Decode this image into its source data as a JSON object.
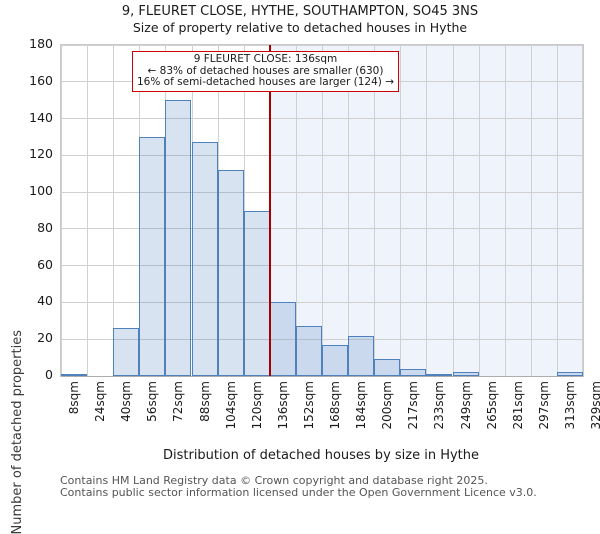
{
  "title": "9, FLEURET CLOSE, HYTHE, SOUTHAMPTON, SO45 3NS",
  "subtitle": "Size of property relative to detached houses in Hythe",
  "annotation": {
    "line1": "9 FLEURET CLOSE: 136sqm",
    "line2": "← 83% of detached houses are smaller (630)",
    "line3": "16% of semi-detached houses are larger (124) →"
  },
  "footer": {
    "line1": "Contains HM Land Registry data © Crown copyright and database right 2025.",
    "line2": "Contains public sector information licensed under the Open Government Licence v3.0."
  },
  "chart_data": {
    "type": "bar",
    "title": "9, FLEURET CLOSE, HYTHE, SOUTHAMPTON, SO45 3NS",
    "subtitle": "Size of property relative to detached houses in Hythe",
    "xlabel": "Distribution of detached houses by size in Hythe",
    "ylabel": "Number of detached properties",
    "categories": [
      "8sqm",
      "24sqm",
      "40sqm",
      "56sqm",
      "72sqm",
      "88sqm",
      "104sqm",
      "120sqm",
      "136sqm",
      "152sqm",
      "168sqm",
      "184sqm",
      "200sqm",
      "217sqm",
      "233sqm",
      "249sqm",
      "265sqm",
      "281sqm",
      "297sqm",
      "313sqm",
      "329sqm"
    ],
    "values": [
      1,
      0,
      26,
      130,
      150,
      127,
      112,
      90,
      40,
      27,
      17,
      22,
      9,
      4,
      1,
      2,
      0,
      0,
      0,
      2
    ],
    "ylim": [
      0,
      180
    ],
    "ytick_step": 20,
    "grid": true,
    "marker": {
      "value_label": "136sqm",
      "bin_index": 8
    },
    "colors": {
      "bar_fill": "rgba(79,129,189,0.22)",
      "bar_edge": "#4f81bd",
      "marker_line": "#a40000",
      "annotation_border": "#cc0000",
      "shade_right_of_marker": "#eff3fb",
      "gridline": "#d0d0d0"
    }
  }
}
